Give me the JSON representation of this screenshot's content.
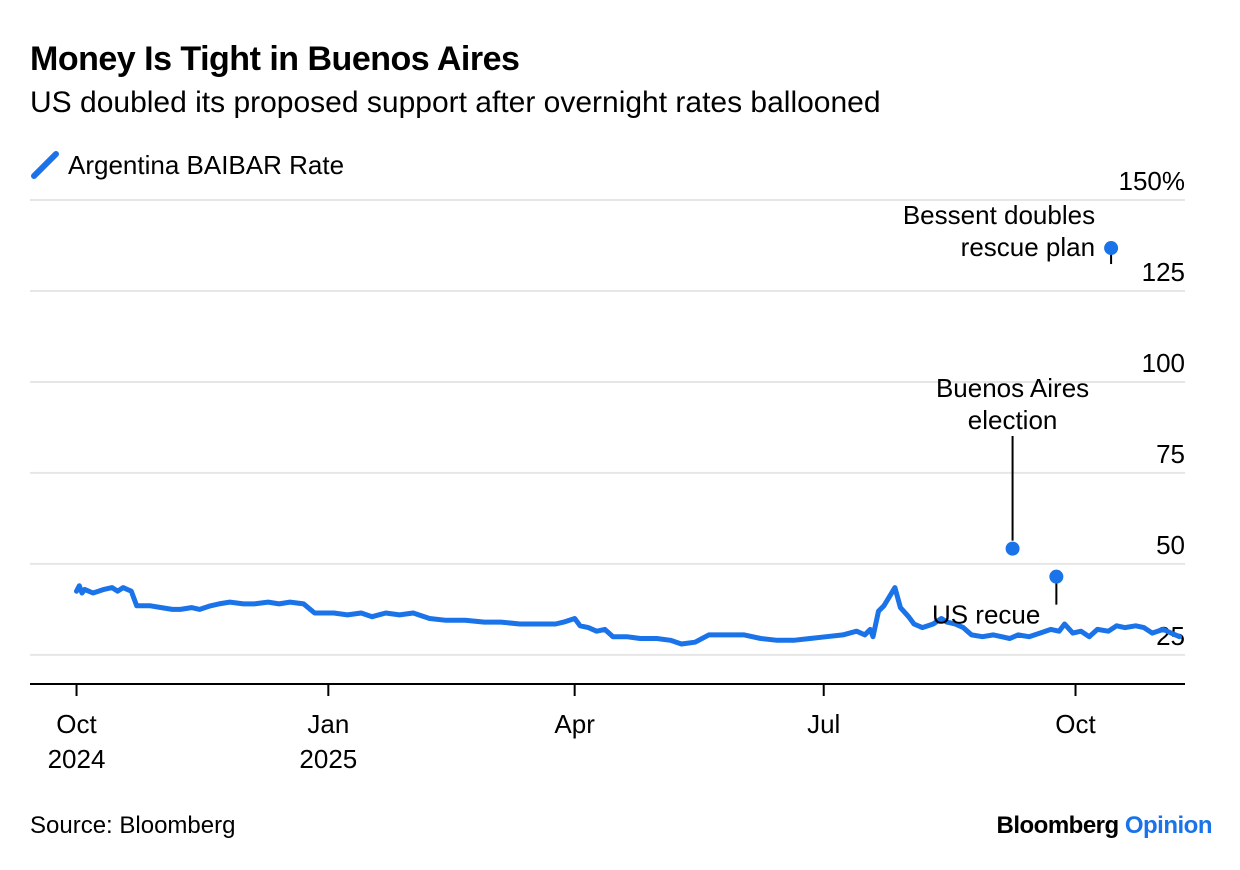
{
  "header": {
    "title": "Money Is Tight in Buenos Aires",
    "subtitle": "US doubled its proposed support after overnight rates ballooned"
  },
  "footer": {
    "source": "Source: Bloomberg",
    "brand_main": "Bloomberg",
    "brand_accent": "Opinion"
  },
  "colors": {
    "line": "#1a73e8",
    "grid": "#e6e6e6",
    "axis": "#000000"
  },
  "chart_data": {
    "type": "line",
    "title": "Money Is Tight in Buenos Aires",
    "subtitle": "US doubled its proposed support after overnight rates ballooned",
    "ylabel": "",
    "xlabel": "",
    "ylim": [
      17,
      150
    ],
    "y_ticks": [
      25,
      50,
      75,
      100,
      125,
      150
    ],
    "y_tick_labels": [
      "25",
      "50",
      "75",
      "100",
      "125",
      "150%"
    ],
    "y_axis_side": "right",
    "grid": true,
    "legend_position": "top-left",
    "x_range": [
      "2024-09-14",
      "2025-11-10"
    ],
    "x_ticks": [
      {
        "date": "2024-10-01",
        "label": [
          "Oct",
          "2024"
        ]
      },
      {
        "date": "2025-01-01",
        "label": [
          "Jan",
          "2025"
        ]
      },
      {
        "date": "2025-04-01",
        "label": [
          "Apr"
        ]
      },
      {
        "date": "2025-07-01",
        "label": [
          "Jul"
        ]
      },
      {
        "date": "2025-10-01",
        "label": [
          "Oct"
        ]
      }
    ],
    "series": [
      {
        "name": "Argentina BAIBAR Rate",
        "color": "#1a73e8",
        "points": [
          [
            "2024-10-01",
            42.5
          ],
          [
            "2024-10-02",
            44.0
          ],
          [
            "2024-10-03",
            42.0
          ],
          [
            "2024-10-04",
            43.0
          ],
          [
            "2024-10-07",
            42.0
          ],
          [
            "2024-10-09",
            42.5
          ],
          [
            "2024-10-11",
            43.0
          ],
          [
            "2024-10-14",
            43.5
          ],
          [
            "2024-10-16",
            42.5
          ],
          [
            "2024-10-18",
            43.5
          ],
          [
            "2024-10-21",
            42.5
          ],
          [
            "2024-10-23",
            38.5
          ],
          [
            "2024-10-28",
            38.5
          ],
          [
            "2024-11-01",
            38.0
          ],
          [
            "2024-11-05",
            37.5
          ],
          [
            "2024-11-08",
            37.5
          ],
          [
            "2024-11-12",
            38.0
          ],
          [
            "2024-11-15",
            37.5
          ],
          [
            "2024-11-19",
            38.5
          ],
          [
            "2024-11-22",
            39.0
          ],
          [
            "2024-11-26",
            39.5
          ],
          [
            "2024-12-01",
            39.0
          ],
          [
            "2024-12-05",
            39.0
          ],
          [
            "2024-12-10",
            39.5
          ],
          [
            "2024-12-14",
            39.0
          ],
          [
            "2024-12-18",
            39.5
          ],
          [
            "2024-12-23",
            39.0
          ],
          [
            "2024-12-27",
            36.5
          ],
          [
            "2025-01-03",
            36.5
          ],
          [
            "2025-01-08",
            36.0
          ],
          [
            "2025-01-13",
            36.5
          ],
          [
            "2025-01-17",
            35.5
          ],
          [
            "2025-01-22",
            36.5
          ],
          [
            "2025-01-27",
            36.0
          ],
          [
            "2025-02-01",
            36.5
          ],
          [
            "2025-02-07",
            35.0
          ],
          [
            "2025-02-13",
            34.5
          ],
          [
            "2025-02-20",
            34.5
          ],
          [
            "2025-02-27",
            34.0
          ],
          [
            "2025-03-05",
            34.0
          ],
          [
            "2025-03-12",
            33.5
          ],
          [
            "2025-03-18",
            33.5
          ],
          [
            "2025-03-25",
            33.5
          ],
          [
            "2025-03-28",
            34.0
          ],
          [
            "2025-04-01",
            35.0
          ],
          [
            "2025-04-03",
            33.0
          ],
          [
            "2025-04-06",
            32.5
          ],
          [
            "2025-04-09",
            31.5
          ],
          [
            "2025-04-12",
            32.0
          ],
          [
            "2025-04-15",
            30.0
          ],
          [
            "2025-04-20",
            30.0
          ],
          [
            "2025-04-25",
            29.5
          ],
          [
            "2025-05-01",
            29.5
          ],
          [
            "2025-05-06",
            29.0
          ],
          [
            "2025-05-10",
            28.0
          ],
          [
            "2025-05-15",
            28.5
          ],
          [
            "2025-05-20",
            30.5
          ],
          [
            "2025-05-27",
            30.5
          ],
          [
            "2025-06-02",
            30.5
          ],
          [
            "2025-06-08",
            29.5
          ],
          [
            "2025-06-14",
            29.0
          ],
          [
            "2025-06-20",
            29.0
          ],
          [
            "2025-06-26",
            29.5
          ],
          [
            "2025-07-02",
            30.0
          ],
          [
            "2025-07-08",
            30.5
          ],
          [
            "2025-07-13",
            31.5
          ],
          [
            "2025-07-16",
            30.5
          ],
          [
            "2025-07-18",
            32.0
          ],
          [
            "2025-07-19",
            30.0
          ],
          [
            "2025-07-21",
            37.0
          ],
          [
            "2025-07-23",
            38.5
          ],
          [
            "2025-07-27",
            43.5
          ],
          [
            "2025-07-29",
            38.0
          ],
          [
            "2025-08-01",
            35.5
          ],
          [
            "2025-08-03",
            33.5
          ],
          [
            "2025-08-06",
            32.5
          ],
          [
            "2025-08-10",
            33.5
          ],
          [
            "2025-08-13",
            35.0
          ],
          [
            "2025-08-15",
            34.0
          ],
          [
            "2025-08-18",
            33.5
          ],
          [
            "2025-08-21",
            32.5
          ],
          [
            "2025-08-24",
            30.5
          ],
          [
            "2025-08-28",
            30.0
          ],
          [
            "2025-09-01",
            30.5
          ],
          [
            "2025-09-04",
            30.0
          ],
          [
            "2025-09-07",
            29.5
          ],
          [
            "2025-09-10",
            30.5
          ],
          [
            "2025-09-14",
            30.0
          ],
          [
            "2025-09-18",
            31.0
          ],
          [
            "2025-09-22",
            32.0
          ],
          [
            "2025-09-25",
            31.5
          ],
          [
            "2025-09-27",
            33.5
          ],
          [
            "2025-09-30",
            31.0
          ],
          [
            "2025-10-03",
            31.5
          ],
          [
            "2025-10-06",
            30.0
          ],
          [
            "2025-10-09",
            32.0
          ],
          [
            "2025-10-13",
            31.5
          ],
          [
            "2025-10-16",
            33.0
          ],
          [
            "2025-10-19",
            32.5
          ],
          [
            "2025-10-23",
            33.0
          ],
          [
            "2025-10-26",
            32.5
          ],
          [
            "2025-10-29",
            31.0
          ],
          [
            "2025-11-02",
            32.0
          ],
          [
            "2025-11-05",
            31.0
          ],
          [
            "2025-11-08",
            30.0
          ]
        ]
      }
    ],
    "annotations": [
      {
        "text": [
          "Bessent doubles",
          "rescue plan"
        ],
        "date": "2025-10-14",
        "value": 136.8
      },
      {
        "text": [
          "Buenos Aires",
          "election"
        ],
        "date": "2025-09-08",
        "value": 54.2
      },
      {
        "text": [
          "US recue"
        ],
        "date": "2025-09-24",
        "value": 46.5
      }
    ]
  }
}
